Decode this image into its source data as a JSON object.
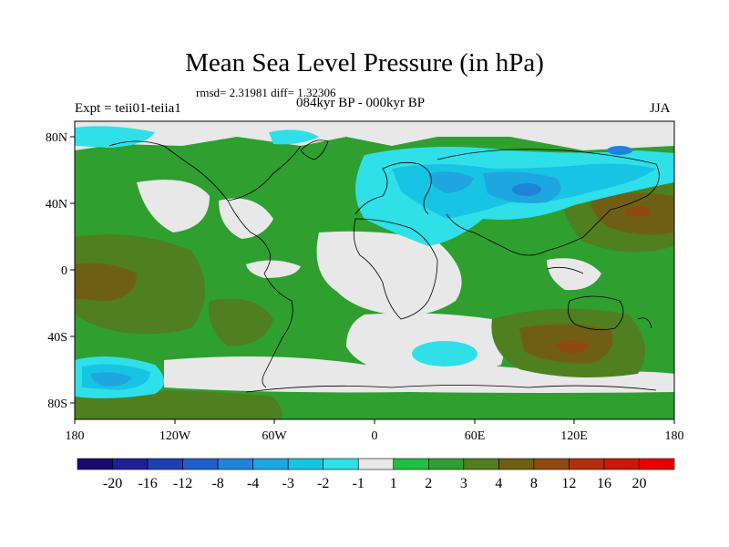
{
  "title": "Mean Sea Level Pressure (in hPa)",
  "stats_text": "rmsd= 2.31981 diff= 1.32306",
  "experiment_text": "Expt = teii01-teiia1",
  "period_text": "084kyr BP - 000kyr BP",
  "season_text": "JJA",
  "lat_labels": [
    "80N",
    "40N",
    "0",
    "40S",
    "80S"
  ],
  "lon_labels": [
    "180",
    "120W",
    "60W",
    "0",
    "60E",
    "120E",
    "180"
  ],
  "colorbar": {
    "labels": [
      "-20",
      "-16",
      "-12",
      "-8",
      "-4",
      "-3",
      "-2",
      "-1",
      "1",
      "2",
      "3",
      "4",
      "8",
      "12",
      "16",
      "20"
    ],
    "colors": [
      "#1a0a6e",
      "#1f1f96",
      "#1f3fb4",
      "#1f5fcc",
      "#1f84d8",
      "#1ea6e0",
      "#18c4e4",
      "#2fe0e8",
      "#e8e8e8",
      "#1fbf3f",
      "#2f9f2f",
      "#4f7f1f",
      "#6f5f14",
      "#8f4a10",
      "#b0300c",
      "#cc1808",
      "#e80000"
    ]
  },
  "colors": {
    "neutral": "#e8e8e8",
    "positive_2": "#1fbf3f",
    "positive_3": "#2f9f2f",
    "positive_4": "#4f7f1f",
    "positive_8": "#6f5f14",
    "positive_12": "#8f4a10",
    "negative_1": "#2fe0e8",
    "negative_2": "#18c4e4",
    "negative_3": "#1ea6e0",
    "negative_4": "#1f84d8"
  }
}
